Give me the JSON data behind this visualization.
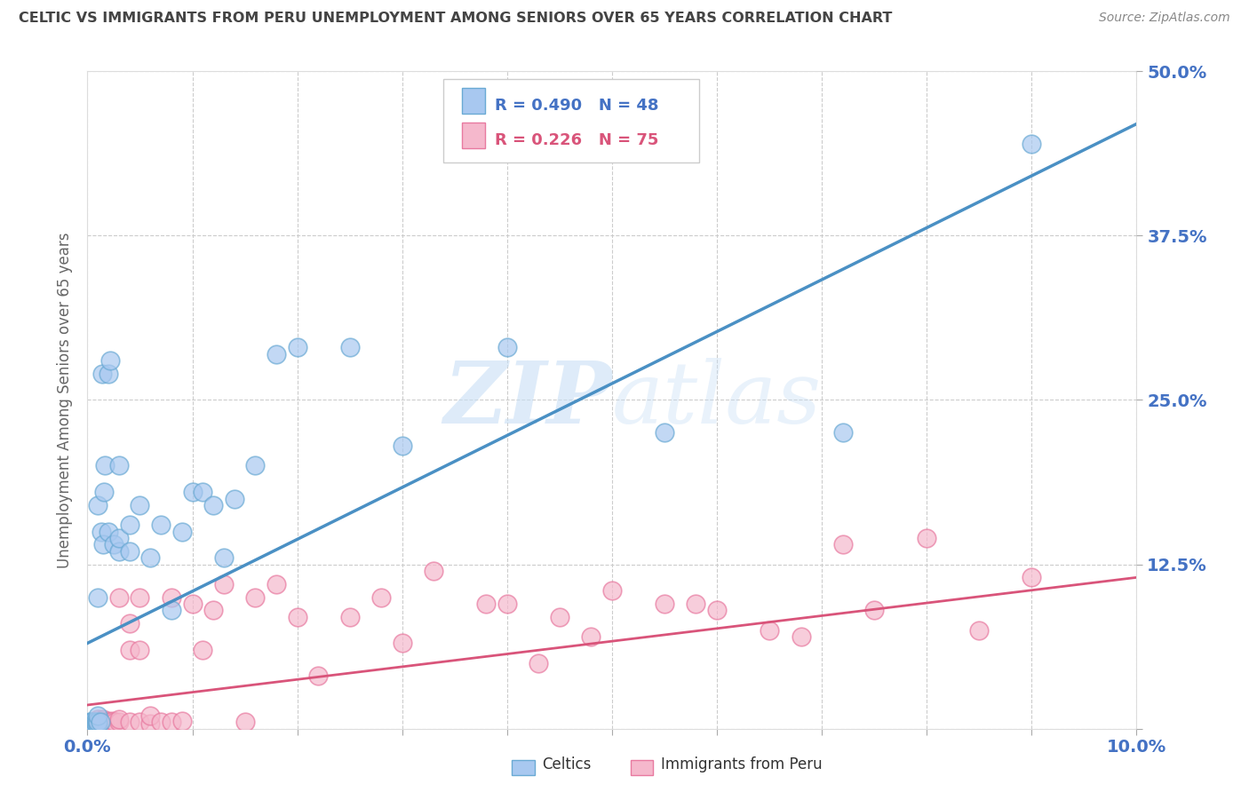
{
  "title": "CELTIC VS IMMIGRANTS FROM PERU UNEMPLOYMENT AMONG SENIORS OVER 65 YEARS CORRELATION CHART",
  "source": "Source: ZipAtlas.com",
  "ylabel": "Unemployment Among Seniors over 65 years",
  "series1_name": "Celtics",
  "series1_R": 0.49,
  "series1_N": 48,
  "series1_color": "#a8c8f0",
  "series1_edge_color": "#6aaad4",
  "series1_line_color": "#4a90c4",
  "series2_name": "Immigrants from Peru",
  "series2_R": 0.226,
  "series2_N": 75,
  "series2_color": "#f5b8cc",
  "series2_edge_color": "#e87aa0",
  "series2_line_color": "#d9547a",
  "xlim": [
    0.0,
    0.1
  ],
  "ylim": [
    0.0,
    0.5
  ],
  "xtick_vals": [
    0.0,
    0.01,
    0.02,
    0.03,
    0.04,
    0.05,
    0.06,
    0.07,
    0.08,
    0.09,
    0.1
  ],
  "ytick_vals": [
    0.0,
    0.125,
    0.25,
    0.375,
    0.5
  ],
  "background_color": "#ffffff",
  "watermark": "ZIPatlas",
  "title_color": "#444444",
  "source_color": "#888888",
  "axis_color": "#4472c4",
  "ylabel_color": "#666666",
  "grid_color": "#cccccc",
  "celtics_x": [
    0.0002,
    0.0003,
    0.0004,
    0.0005,
    0.0005,
    0.0006,
    0.0007,
    0.0008,
    0.0009,
    0.001,
    0.001,
    0.001,
    0.001,
    0.001,
    0.0012,
    0.0013,
    0.0014,
    0.0015,
    0.0016,
    0.0017,
    0.002,
    0.002,
    0.0022,
    0.0025,
    0.003,
    0.003,
    0.003,
    0.004,
    0.004,
    0.005,
    0.006,
    0.007,
    0.008,
    0.009,
    0.01,
    0.011,
    0.012,
    0.013,
    0.014,
    0.016,
    0.018,
    0.02,
    0.025,
    0.03,
    0.04,
    0.055,
    0.072,
    0.09
  ],
  "celtics_y": [
    0.005,
    0.005,
    0.003,
    0.004,
    0.005,
    0.003,
    0.005,
    0.004,
    0.005,
    0.003,
    0.005,
    0.01,
    0.1,
    0.17,
    0.005,
    0.15,
    0.27,
    0.14,
    0.18,
    0.2,
    0.15,
    0.27,
    0.28,
    0.14,
    0.135,
    0.145,
    0.2,
    0.135,
    0.155,
    0.17,
    0.13,
    0.155,
    0.09,
    0.15,
    0.18,
    0.18,
    0.17,
    0.13,
    0.175,
    0.2,
    0.285,
    0.29,
    0.29,
    0.215,
    0.29,
    0.225,
    0.225,
    0.445
  ],
  "peru_x": [
    0.0001,
    0.0002,
    0.0002,
    0.0003,
    0.0003,
    0.0004,
    0.0004,
    0.0005,
    0.0005,
    0.0006,
    0.0006,
    0.0007,
    0.0007,
    0.0008,
    0.0009,
    0.001,
    0.001,
    0.001,
    0.001,
    0.001,
    0.0012,
    0.0013,
    0.0014,
    0.0015,
    0.0016,
    0.0017,
    0.002,
    0.002,
    0.0022,
    0.0024,
    0.0026,
    0.003,
    0.003,
    0.003,
    0.004,
    0.004,
    0.004,
    0.005,
    0.005,
    0.005,
    0.006,
    0.006,
    0.007,
    0.008,
    0.008,
    0.009,
    0.01,
    0.011,
    0.012,
    0.013,
    0.015,
    0.016,
    0.018,
    0.02,
    0.022,
    0.025,
    0.028,
    0.03,
    0.033,
    0.038,
    0.04,
    0.043,
    0.045,
    0.048,
    0.05,
    0.055,
    0.058,
    0.06,
    0.065,
    0.068,
    0.072,
    0.075,
    0.08,
    0.085,
    0.09
  ],
  "peru_y": [
    0.003,
    0.003,
    0.004,
    0.003,
    0.004,
    0.003,
    0.004,
    0.003,
    0.004,
    0.003,
    0.004,
    0.003,
    0.004,
    0.003,
    0.004,
    0.003,
    0.004,
    0.005,
    0.006,
    0.007,
    0.004,
    0.005,
    0.006,
    0.007,
    0.004,
    0.005,
    0.005,
    0.006,
    0.005,
    0.006,
    0.005,
    0.005,
    0.007,
    0.1,
    0.005,
    0.08,
    0.06,
    0.005,
    0.1,
    0.06,
    0.004,
    0.01,
    0.005,
    0.005,
    0.1,
    0.006,
    0.095,
    0.06,
    0.09,
    0.11,
    0.005,
    0.1,
    0.11,
    0.085,
    0.04,
    0.085,
    0.1,
    0.065,
    0.12,
    0.095,
    0.095,
    0.05,
    0.085,
    0.07,
    0.105,
    0.095,
    0.095,
    0.09,
    0.075,
    0.07,
    0.14,
    0.09,
    0.145,
    0.075,
    0.115
  ]
}
